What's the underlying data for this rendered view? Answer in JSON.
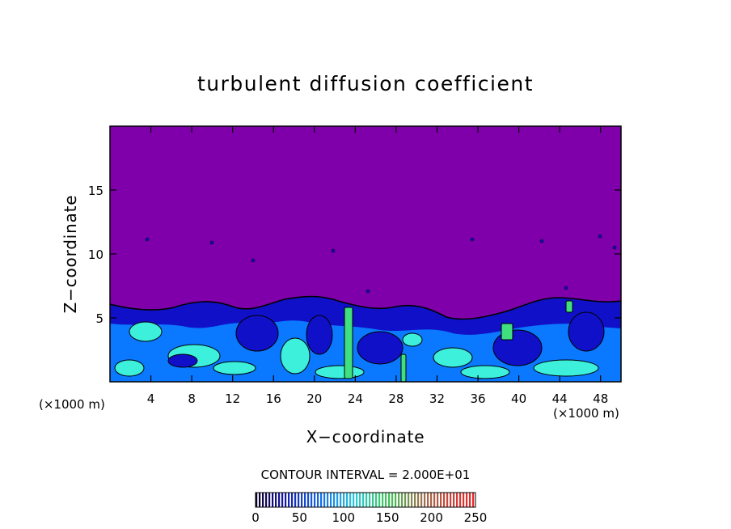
{
  "chart_data": {
    "type": "heatmap",
    "title": "turbulent diffusion coefficient",
    "xlabel": "X−coordinate",
    "ylabel": "Z−coordinate",
    "x_unit_left": "(×1000 m)",
    "x_unit_right": "(×1000 m)",
    "xlim": [
      0,
      50
    ],
    "ylim": [
      0,
      20
    ],
    "x_ticks": [
      4,
      8,
      12,
      16,
      20,
      24,
      28,
      32,
      36,
      40,
      44,
      48
    ],
    "y_ticks": [
      5,
      10,
      15
    ],
    "contour_interval_label": "CONTOUR INTERVAL = 2.000E+01",
    "contour_interval": 20,
    "colorbar": {
      "min": 0,
      "max": 250,
      "ticks": [
        0,
        50,
        100,
        150,
        200,
        250
      ]
    },
    "turbulent_layer_top_km": 6,
    "colors": {
      "background_field": "#7f00aa",
      "low": "#1010c8",
      "mid": "#0a78ff",
      "high": "#3cf0dc",
      "peak": "#40e080",
      "contour": "#000000"
    }
  }
}
